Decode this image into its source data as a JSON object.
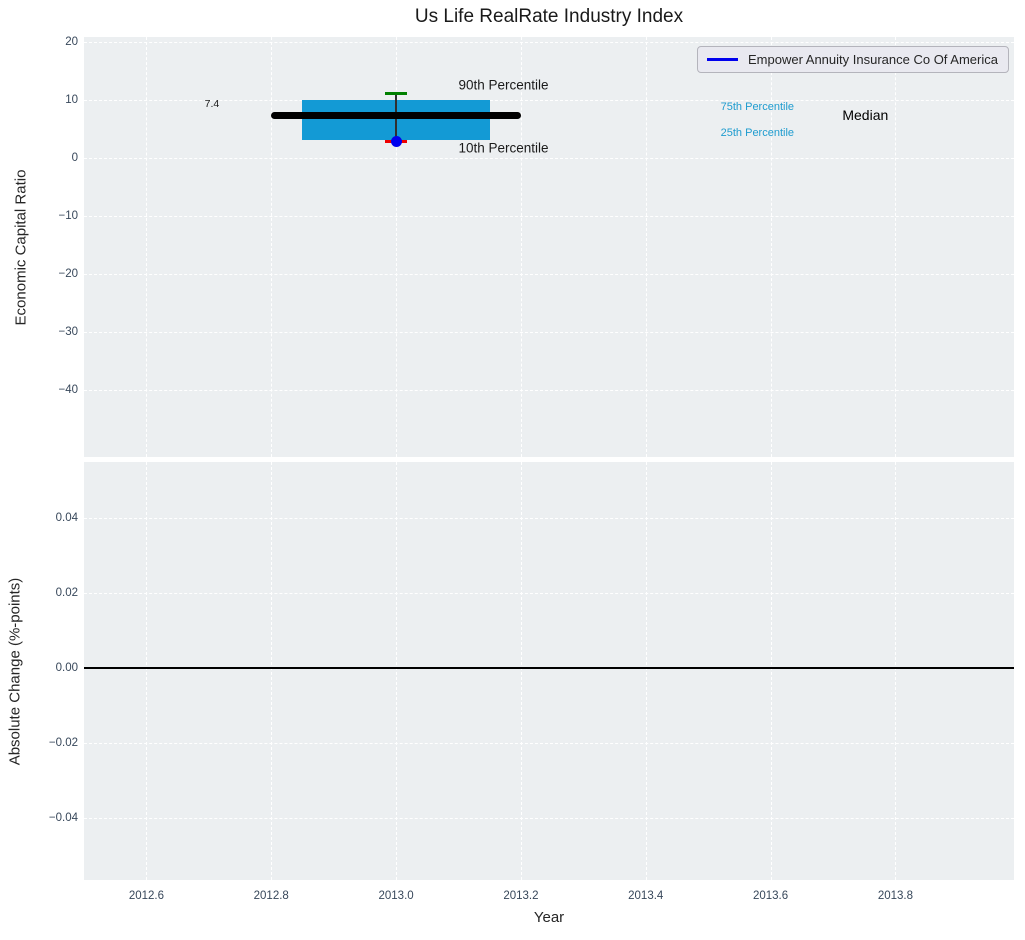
{
  "legend": {
    "label": "Empower Annuity Insurance Co Of America",
    "line_color": "#0000EE"
  },
  "chart_data": {
    "type": "boxplot",
    "title": "Us Life RealRate Industry Index",
    "xlabel": "Year",
    "xlim": [
      2012.5,
      2013.99
    ],
    "x_ticks": {
      "values": [
        2012.6,
        2012.8,
        2013.0,
        2013.2,
        2013.4,
        2013.6,
        2013.8
      ],
      "labels": [
        "2012.6",
        "2012.8",
        "2013.0",
        "2013.2",
        "2013.4",
        "2013.6",
        "2013.8"
      ]
    },
    "top": {
      "ylabel": "Economic Capital Ratio",
      "ylim": [
        -51.6,
        20.9
      ],
      "y_ticks": {
        "values": [
          20,
          10,
          0,
          -10,
          -20,
          -30,
          -40
        ],
        "labels": [
          "20",
          "10",
          "0",
          "−10",
          "−20",
          "−30",
          "−40"
        ]
      },
      "box": {
        "year": 2013,
        "x_left": 2012.85,
        "x_right": 2013.15,
        "q25": 3.2,
        "q75": 10.1,
        "median": 7.4,
        "p10": 2.8,
        "p90": 11.2,
        "median_line_x": [
          2012.8,
          2013.2
        ],
        "cap_halfwidth": 0.017,
        "company_value": 2.8
      },
      "colors": {
        "box": "#139AD5",
        "median": "#000000",
        "p90_cap": "#008000",
        "p10_cap": "#EE0000",
        "company_dot": "#0000EE",
        "whisker": "#303030"
      },
      "annotations": [
        {
          "id": "median-value-label",
          "text": "7.4",
          "x": 2012.705,
          "y": 9.35,
          "color": "#1a1a1a",
          "size": 10.5,
          "anchor": "center"
        },
        {
          "id": "p90-label",
          "text": "90th Percentile",
          "x": 2013.1,
          "y": 12.6,
          "color": "#1a1a1a",
          "size": 13.5,
          "anchor": "left"
        },
        {
          "id": "p10-label",
          "text": "10th Percentile",
          "x": 2013.1,
          "y": 1.7,
          "color": "#1a1a1a",
          "size": 13.5,
          "anchor": "left"
        },
        {
          "id": "q75-label",
          "text": "75th Percentile",
          "x": 2013.52,
          "y": 8.8,
          "color": "#1F9CCF",
          "size": 11,
          "anchor": "left"
        },
        {
          "id": "q25-label",
          "text": "25th Percentile",
          "x": 2013.52,
          "y": 4.3,
          "color": "#1F9CCF",
          "size": 11,
          "anchor": "left"
        },
        {
          "id": "median-label",
          "text": "Median",
          "x": 2013.715,
          "y": 7.5,
          "color": "#000000",
          "size": 14,
          "anchor": "left"
        }
      ]
    },
    "bottom": {
      "ylabel": "Absolute Change (%-points)",
      "ylim": [
        -0.0565,
        0.0549
      ],
      "y_ticks": {
        "values": [
          0.04,
          0.02,
          0,
          -0.02,
          -0.04
        ],
        "labels": [
          "0.04",
          "0.02",
          "0.00",
          "−0.02",
          "−0.04"
        ]
      },
      "zero_line": {
        "y": 0,
        "color": "#000000"
      }
    },
    "style": {
      "plot_bg": "#ECEFF1",
      "grid_color": "#FFFFFF",
      "tick_color": "#37475A",
      "label_color": "#262626"
    }
  }
}
